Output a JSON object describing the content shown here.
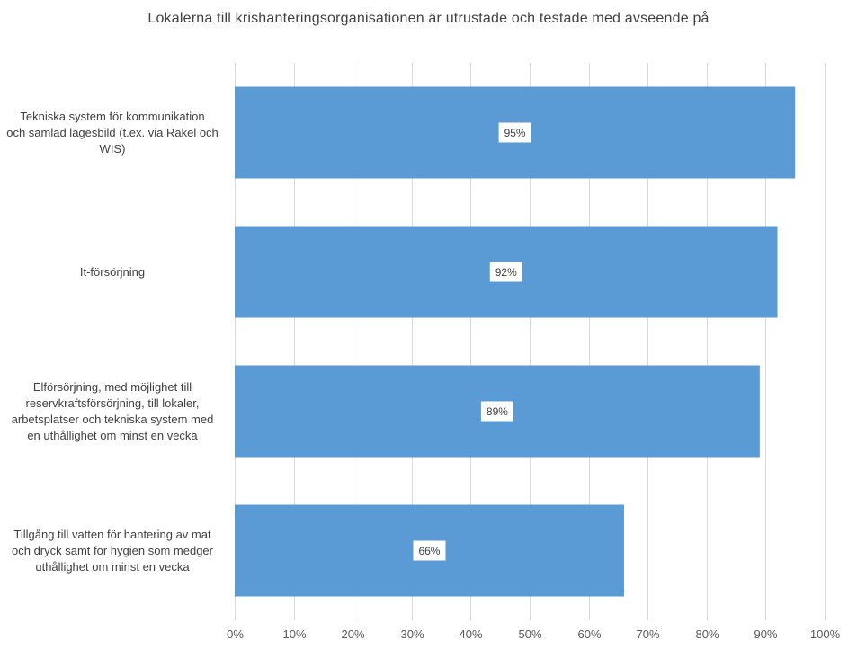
{
  "chart_data": {
    "type": "bar",
    "orientation": "horizontal",
    "title": "Lokalerna till krishanteringsorganisationen  är utrustade och testade med avseende på",
    "categories": [
      "Tekniska system för kommunikation och samlad lägesbild (t.ex. via Rakel och WIS)",
      "It-försörjning",
      "Elförsörjning, med möjlighet till reservkraftsförsörjning, till lokaler, arbetsplatser och tekniska system med en uthållighet om minst en vecka",
      "Tillgång till vatten för hantering av mat och dryck samt för hygien som medger uthållighet om minst en vecka"
    ],
    "category_lines": [
      [
        "Tekniska system för kommunikation",
        "och samlad lägesbild (t.ex. via Rakel och",
        "WIS)"
      ],
      [
        "It-försörjning"
      ],
      [
        "Elförsörjning, med möjlighet till",
        "reservkraftsförsörjning, till lokaler,",
        "arbetsplatser och tekniska system med",
        "en uthållighet om minst en vecka"
      ],
      [
        "Tillgång till vatten för hantering av mat",
        "och dryck samt för hygien som medger",
        "uthållighet om minst en vecka"
      ]
    ],
    "values": [
      95,
      92,
      89,
      66
    ],
    "data_labels": [
      "95%",
      "92%",
      "89%",
      "66%"
    ],
    "xlim": [
      0,
      100
    ],
    "x_ticks": [
      0,
      10,
      20,
      30,
      40,
      50,
      60,
      70,
      80,
      90,
      100
    ],
    "x_tick_labels": [
      "0%",
      "10%",
      "20%",
      "30%",
      "40%",
      "50%",
      "60%",
      "70%",
      "80%",
      "90%",
      "100%"
    ],
    "xlabel": "",
    "ylabel": "",
    "grid": "vertical",
    "bar_color": "#5B9BD5",
    "grid_color": "#D9D9D9"
  }
}
